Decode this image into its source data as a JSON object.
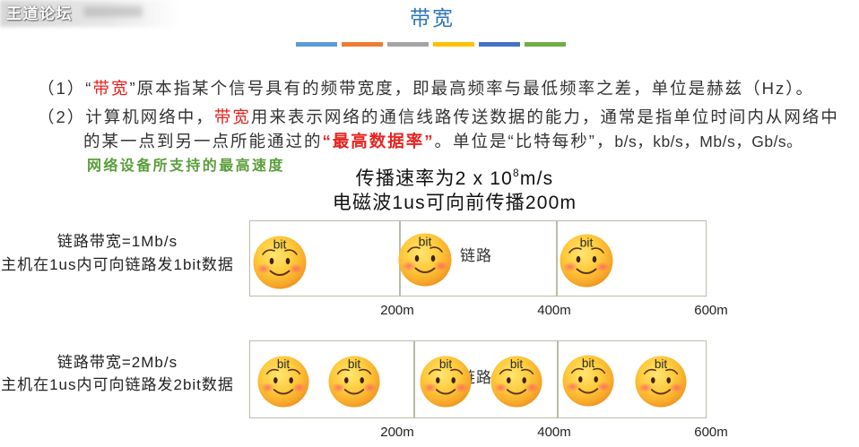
{
  "watermark": {
    "brand": "王道论坛"
  },
  "title": "带宽",
  "colors": {
    "title": "#2E75B6",
    "highlight": "#E8231F",
    "callout": "#5A9E3A",
    "frame": "#B5BEA8"
  },
  "accent_bars": [
    "#5B9BD5",
    "#ED7D31",
    "#A5A5A5",
    "#FFC000",
    "#4472C4",
    "#70AD47"
  ],
  "definitions": {
    "p1": {
      "label": "（1）",
      "open_quote": "“",
      "term": "带宽",
      "rest": "”原本指某个信号具有的频带宽度，即最高频率与最低频率之差，单位是赫兹（Hz）。"
    },
    "p2": {
      "label": "（2）",
      "line1": {
        "pre": "计算机网络中，",
        "term": "带宽",
        "post": "用来表示网络的通信线路传送数据的能力，通常是指单位时间内从网络中"
      },
      "line2": {
        "pre": "的某一点到另一点所能通过的",
        "term": "“最高数据率”",
        "post": "。单位是“比特每秒”，",
        "units": "b/s，kb/s，Mb/s，Gb/s。"
      }
    }
  },
  "diagram": {
    "callout": "网络设备所支持的最高速度",
    "propagation": {
      "speed_prefix": "传播速率为2 x 10",
      "speed_exponent": "8",
      "speed_unit": "m/s",
      "distance_per_us": "电磁波1us可向前传播200m"
    },
    "bit_icon": "smiley-face",
    "rows": [
      {
        "bandwidth": "链路带宽=1Mb/s",
        "description": "主机在1us内可向链路发1bit数据",
        "link_label": "链路",
        "bits": [
          "bit",
          "bit",
          "bit"
        ],
        "distance_labels": [
          "200m",
          "400m",
          "600m"
        ]
      },
      {
        "bandwidth": "链路带宽=2Mb/s",
        "description": "主机在1us内可向链路发2bit数据",
        "link_label": "链路",
        "bits": [
          "bit",
          "bit",
          "bit",
          "bit",
          "bit",
          "bit"
        ],
        "distance_labels": [
          "200m",
          "400m",
          "600m"
        ]
      }
    ]
  }
}
